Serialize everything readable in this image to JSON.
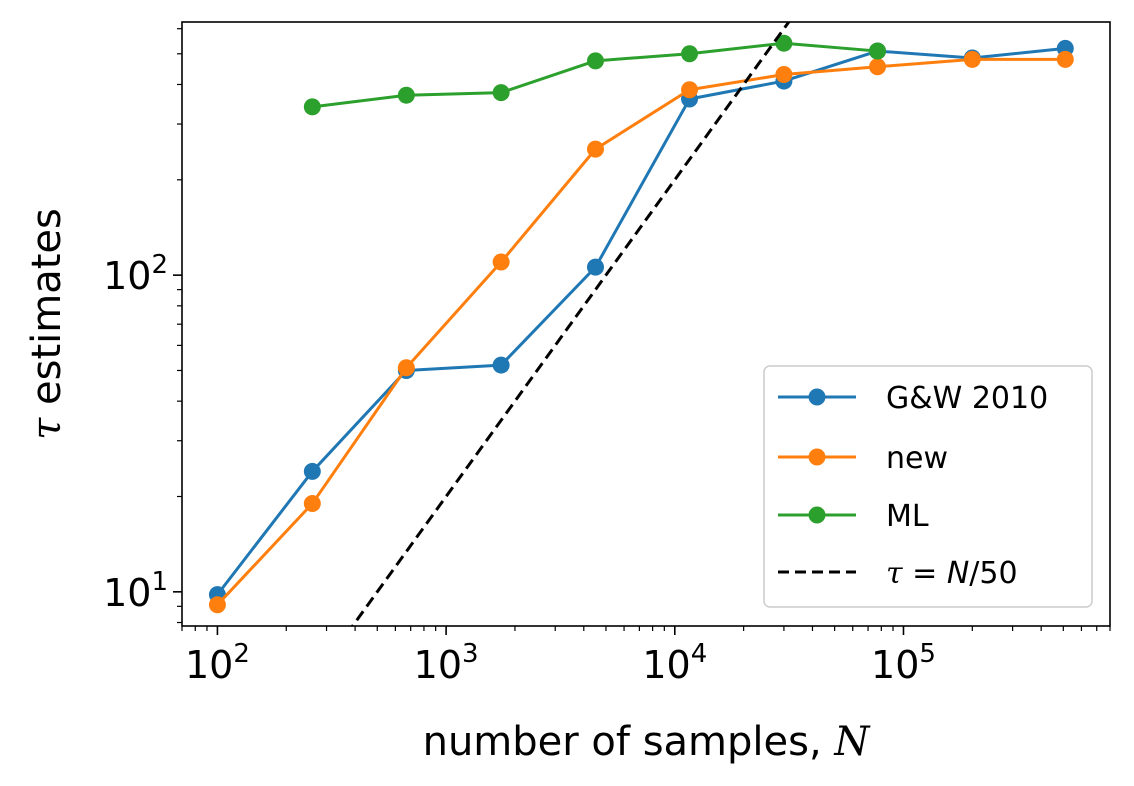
{
  "chart_data": {
    "type": "line",
    "xscale": "log",
    "yscale": "log",
    "xlim": [
      70,
      800000
    ],
    "ylim": [
      7.8,
      630
    ],
    "xlabel": {
      "text": "number of samples, ",
      "var": "N"
    },
    "ylabel": {
      "var": "τ",
      "text": " estimates"
    },
    "x_ticks": [
      {
        "value": 100,
        "base": "10",
        "exp": "2"
      },
      {
        "value": 1000,
        "base": "10",
        "exp": "3"
      },
      {
        "value": 10000,
        "base": "10",
        "exp": "4"
      },
      {
        "value": 100000,
        "base": "10",
        "exp": "5"
      }
    ],
    "y_ticks": [
      {
        "value": 10,
        "base": "10",
        "exp": "1"
      },
      {
        "value": 100,
        "base": "10",
        "exp": "2"
      }
    ],
    "legend_position": "lower-right",
    "series": [
      {
        "name": "G&W 2010",
        "color": "#1f77b4",
        "style": "line-marker",
        "x": [
          100,
          260,
          670,
          1740,
          4500,
          11600,
          30000,
          77000,
          200000,
          510000
        ],
        "y": [
          9.8,
          24,
          50,
          52,
          106,
          360,
          410,
          510,
          485,
          520
        ]
      },
      {
        "name": "new",
        "color": "#ff7f0e",
        "style": "line-marker",
        "x": [
          100,
          260,
          670,
          1740,
          4500,
          11600,
          30000,
          77000,
          200000,
          510000
        ],
        "y": [
          9.1,
          19,
          51,
          110,
          250,
          385,
          430,
          455,
          480,
          480
        ]
      },
      {
        "name": "ML",
        "color": "#2ca02c",
        "style": "line-marker",
        "x": [
          260,
          670,
          1740,
          4500,
          11600,
          30000,
          77000
        ],
        "y": [
          340,
          370,
          377,
          475,
          500,
          540,
          510
        ]
      },
      {
        "name": "τ = N/50",
        "label_parts": {
          "var": "τ",
          "eq": " = ",
          "rhs_var": "N",
          "rhs": "/50"
        },
        "color": "#000000",
        "style": "dashed",
        "x": [
          100,
          1000000
        ],
        "y": [
          2,
          20000
        ]
      }
    ]
  }
}
